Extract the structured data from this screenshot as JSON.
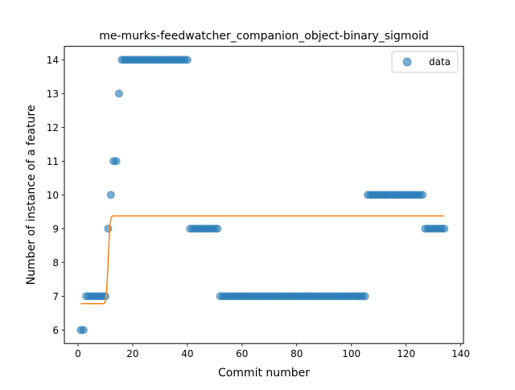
{
  "chart_data": {
    "type": "scatter",
    "title": "me-murks-feedwatcher_companion_object-binary_sigmoid",
    "xlabel": "Commit number",
    "ylabel": "Number of instance of a feature",
    "xlim": [
      -5,
      141
    ],
    "ylim": [
      5.6,
      14.4
    ],
    "xticks": [
      0,
      20,
      40,
      60,
      80,
      100,
      120,
      140
    ],
    "yticks": [
      6,
      7,
      8,
      9,
      10,
      11,
      12,
      13,
      14
    ],
    "grid": false,
    "legend_position": "top-right",
    "series": [
      {
        "name": "data",
        "type": "scatter",
        "color": "#1f77b4",
        "segments": [
          {
            "x_from": 1,
            "x_to": 2,
            "y": 6
          },
          {
            "x_from": 3,
            "x_to": 10,
            "y": 7
          },
          {
            "x_from": 11,
            "x_to": 11,
            "y": 9
          },
          {
            "x_from": 12,
            "x_to": 12,
            "y": 10
          },
          {
            "x_from": 13,
            "x_to": 14,
            "y": 11
          },
          {
            "x_from": 15,
            "x_to": 15,
            "y": 13
          },
          {
            "x_from": 16,
            "x_to": 40,
            "y": 14
          },
          {
            "x_from": 41,
            "x_to": 51,
            "y": 9
          },
          {
            "x_from": 52,
            "x_to": 105,
            "y": 7
          },
          {
            "x_from": 106,
            "x_to": 126,
            "y": 10
          },
          {
            "x_from": 127,
            "x_to": 134,
            "y": 9
          }
        ]
      },
      {
        "name": "",
        "type": "line",
        "color": "#ff7f0e",
        "points": [
          [
            1,
            6.78
          ],
          [
            9.5,
            6.78
          ],
          [
            10,
            6.85
          ],
          [
            10.5,
            7.2
          ],
          [
            11,
            8.0
          ],
          [
            11.5,
            8.9
          ],
          [
            12,
            9.3
          ],
          [
            12.5,
            9.37
          ],
          [
            13,
            9.38
          ],
          [
            134,
            9.38
          ]
        ]
      }
    ]
  }
}
